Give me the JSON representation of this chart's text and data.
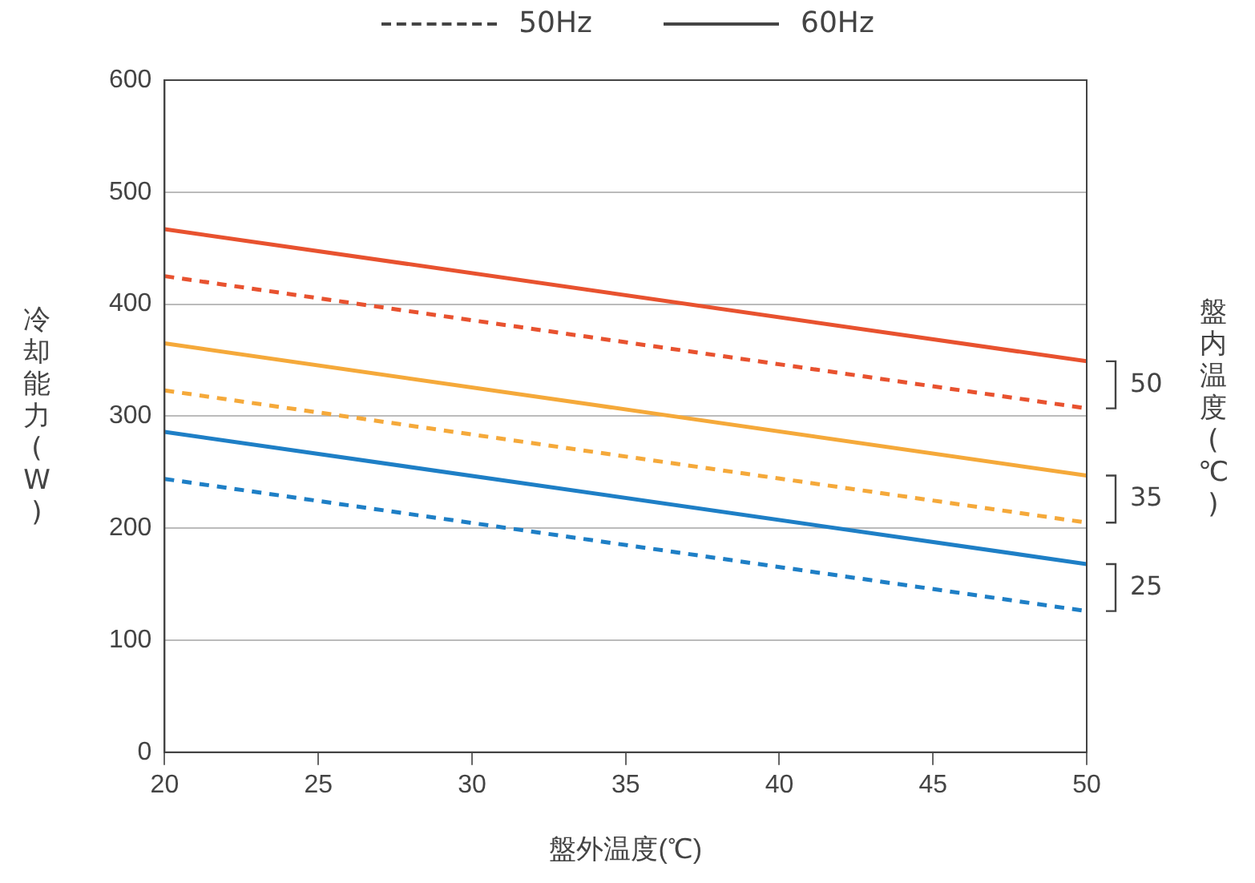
{
  "chart_data": {
    "type": "line",
    "xlabel": "盤外温度(℃)",
    "ylabel": "冷却能力(W)",
    "y2label": "盤内温度(℃)",
    "x": [
      20,
      50
    ],
    "xlim": [
      20,
      50
    ],
    "xticks": [
      20,
      25,
      30,
      35,
      40,
      45,
      50
    ],
    "ylim": [
      0,
      600
    ],
    "yticks": [
      0,
      100,
      200,
      300,
      400,
      500,
      600
    ],
    "grid": "y",
    "marker": "none",
    "series": [
      {
        "color": "#e8522f",
        "line_style": "solid",
        "values": [
          467,
          349
        ]
      },
      {
        "color": "#e8522f",
        "line_style": "dashed",
        "values": [
          425,
          307
        ]
      },
      {
        "color": "#f5a93a",
        "line_style": "solid",
        "values": [
          365,
          247
        ]
      },
      {
        "color": "#f5a93a",
        "line_style": "dashed",
        "values": [
          323,
          205
        ]
      },
      {
        "color": "#1e7fc6",
        "line_style": "solid",
        "values": [
          286,
          168
        ]
      },
      {
        "color": "#1e7fc6",
        "line_style": "dashed",
        "values": [
          244,
          126
        ]
      }
    ],
    "annotations": [
      "50Hz",
      "60Hz",
      "50",
      "35",
      "25"
    ]
  }
}
